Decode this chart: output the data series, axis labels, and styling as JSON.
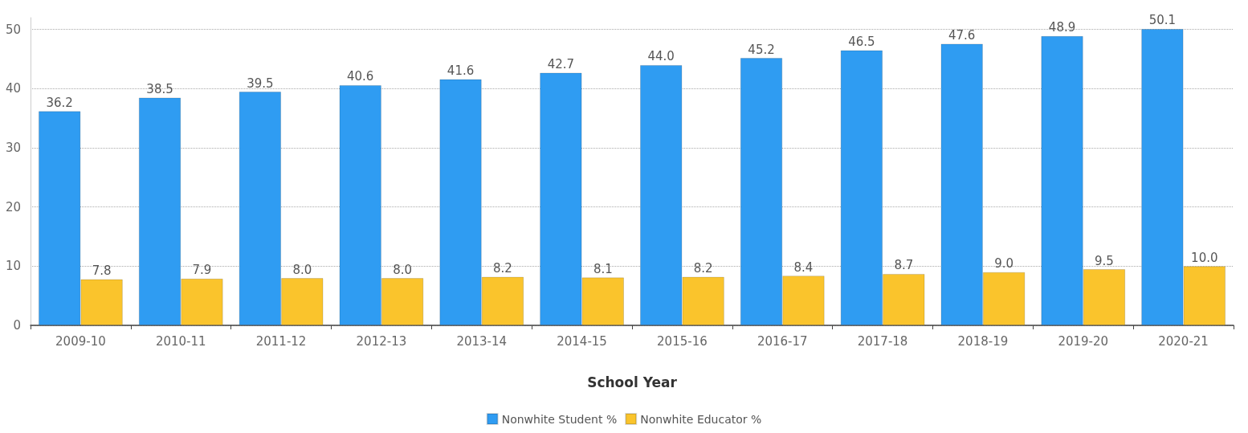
{
  "chart_data": {
    "type": "bar",
    "xlabel": "School Year",
    "categories": [
      "2009-10",
      "2010-11",
      "2011-12",
      "2012-13",
      "2013-14",
      "2014-15",
      "2015-16",
      "2016-17",
      "2017-18",
      "2018-19",
      "2019-20",
      "2020-21"
    ],
    "series": [
      {
        "name": "Nonwhite Student %",
        "color": "#2f9cf2",
        "values": [
          36.2,
          38.5,
          39.5,
          40.6,
          41.6,
          42.7,
          44.0,
          45.2,
          46.5,
          47.6,
          48.9,
          50.1
        ],
        "value_labels": [
          "36.2",
          "38.5",
          "39.5",
          "40.6",
          "41.6",
          "42.7",
          "44.0",
          "45.2",
          "46.5",
          "47.6",
          "48.9",
          "50.1"
        ]
      },
      {
        "name": "Nonwhite Educator %",
        "color": "#fac42c",
        "values": [
          7.8,
          7.9,
          8.0,
          8.0,
          8.2,
          8.1,
          8.2,
          8.4,
          8.7,
          9.0,
          9.5,
          10.0
        ],
        "value_labels": [
          "7.8",
          "7.9",
          "8.0",
          "8.0",
          "8.2",
          "8.1",
          "8.2",
          "8.4",
          "8.7",
          "9.0",
          "9.5",
          "10.0"
        ]
      }
    ],
    "ylim": [
      0,
      52
    ],
    "yticks": [
      0,
      10,
      20,
      30,
      40,
      50
    ],
    "grid": "y",
    "legend": "bottom"
  }
}
